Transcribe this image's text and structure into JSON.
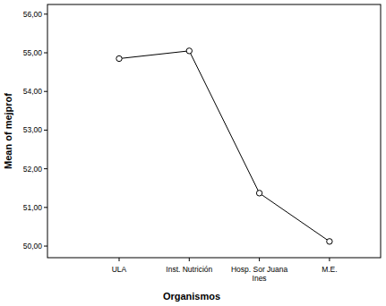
{
  "chart_data": {
    "type": "line",
    "x_label": "Organismos",
    "y_label": "Mean of mejprof",
    "categories": [
      "ULA",
      "Inst. Nutrición",
      "Hosp. Sor Juana Ines",
      "M.E."
    ],
    "values": [
      54.85,
      55.05,
      51.37,
      50.12
    ],
    "color": "#000000",
    "marker": "circle",
    "line_style": "solid",
    "grid": false,
    "ylim": [
      49.7,
      56.25
    ],
    "yticks": [
      {
        "value": 50,
        "label": "50,00"
      },
      {
        "value": 51,
        "label": "51,00"
      },
      {
        "value": 52,
        "label": "52,00"
      },
      {
        "value": 53,
        "label": "53,00"
      },
      {
        "value": 54,
        "label": "54,00"
      },
      {
        "value": 55,
        "label": "55,00"
      },
      {
        "value": 56,
        "label": "56,00"
      }
    ]
  }
}
